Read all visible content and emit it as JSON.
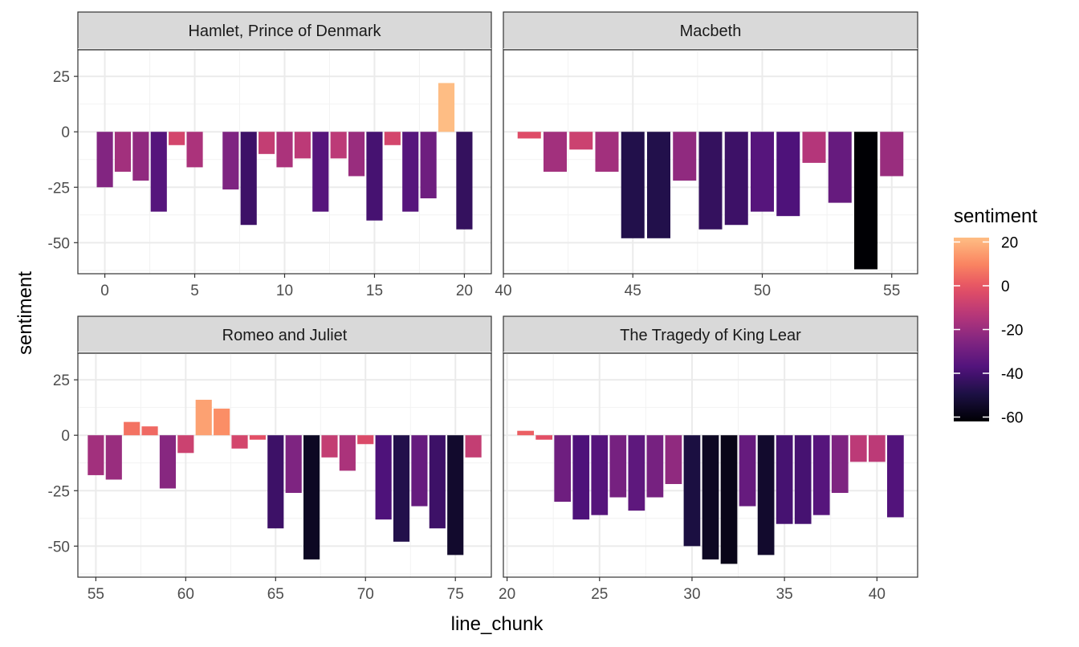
{
  "chart_data": {
    "type": "bar",
    "xlabel": "line_chunk",
    "ylabel": "sentiment",
    "ylim": [
      -64,
      37
    ],
    "y_ticks": [
      25,
      0,
      -25,
      -50
    ],
    "y_tick_labels": [
      "25",
      "0",
      "-25",
      "-50"
    ],
    "grid": true,
    "colormap": "magma",
    "legend": {
      "title": "sentiment",
      "position": "right",
      "range": [
        -62,
        22
      ],
      "ticks": [
        20,
        0,
        -20,
        -40,
        -60
      ],
      "tick_labels": [
        "20",
        "0",
        "-20",
        "-40",
        "-60"
      ]
    },
    "facets": [
      {
        "title": "Hamlet, Prince of Denmark",
        "xlim": [
          -1.5,
          21.5
        ],
        "x_ticks": [
          0,
          5,
          10,
          15,
          20
        ],
        "x_tick_labels": [
          "0",
          "5",
          "10",
          "15",
          "20"
        ],
        "x": [
          0,
          1,
          2,
          3,
          4,
          5,
          7,
          8,
          9,
          10,
          11,
          12,
          13,
          14,
          15,
          16,
          17,
          18,
          19,
          20
        ],
        "values": [
          -25,
          -18,
          -22,
          -36,
          -6,
          -16,
          -26,
          -42,
          -10,
          -16,
          -12,
          -36,
          -12,
          -20,
          -40,
          -6,
          -36,
          -30,
          22,
          -44
        ]
      },
      {
        "title": "Macbeth",
        "xlim": [
          40,
          56
        ],
        "x_ticks": [
          40,
          45,
          50,
          55
        ],
        "x_tick_labels": [
          "40",
          "45",
          "50",
          "55"
        ],
        "x": [
          41,
          42,
          43,
          44,
          45,
          46,
          47,
          48,
          49,
          50,
          51,
          52,
          53,
          54,
          55
        ],
        "values": [
          -3,
          -18,
          -8,
          -18,
          -48,
          -48,
          -22,
          -44,
          -42,
          -36,
          -38,
          -14,
          -32,
          -62,
          -20
        ]
      },
      {
        "title": "Romeo and Juliet",
        "xlim": [
          54,
          77
        ],
        "x_ticks": [
          55,
          60,
          65,
          70,
          75
        ],
        "x_tick_labels": [
          "55",
          "60",
          "65",
          "70",
          "75"
        ],
        "x": [
          55,
          56,
          57,
          58,
          59,
          60,
          61,
          62,
          63,
          64,
          65,
          66,
          67,
          68,
          69,
          70,
          71,
          72,
          73,
          74,
          75,
          76
        ],
        "values": [
          -18,
          -20,
          6,
          4,
          -24,
          -8,
          16,
          12,
          -6,
          -2,
          -42,
          -26,
          -56,
          -10,
          -16,
          -4,
          -38,
          -48,
          -32,
          -42,
          -54,
          -10
        ]
      },
      {
        "title": "The Tragedy of King Lear",
        "xlim": [
          19.8,
          42.2
        ],
        "x_ticks": [
          20,
          25,
          30,
          35,
          40
        ],
        "x_tick_labels": [
          "20",
          "25",
          "30",
          "35",
          "40"
        ],
        "x": [
          21,
          22,
          23,
          24,
          25,
          26,
          27,
          28,
          29,
          30,
          31,
          32,
          33,
          34,
          35,
          36,
          37,
          38,
          39,
          40,
          41
        ],
        "values": [
          2,
          -2,
          -30,
          -38,
          -36,
          -28,
          -34,
          -28,
          -22,
          -50,
          -56,
          -58,
          -32,
          -54,
          -40,
          -40,
          -36,
          -26,
          -12,
          -12,
          -37
        ]
      }
    ]
  }
}
